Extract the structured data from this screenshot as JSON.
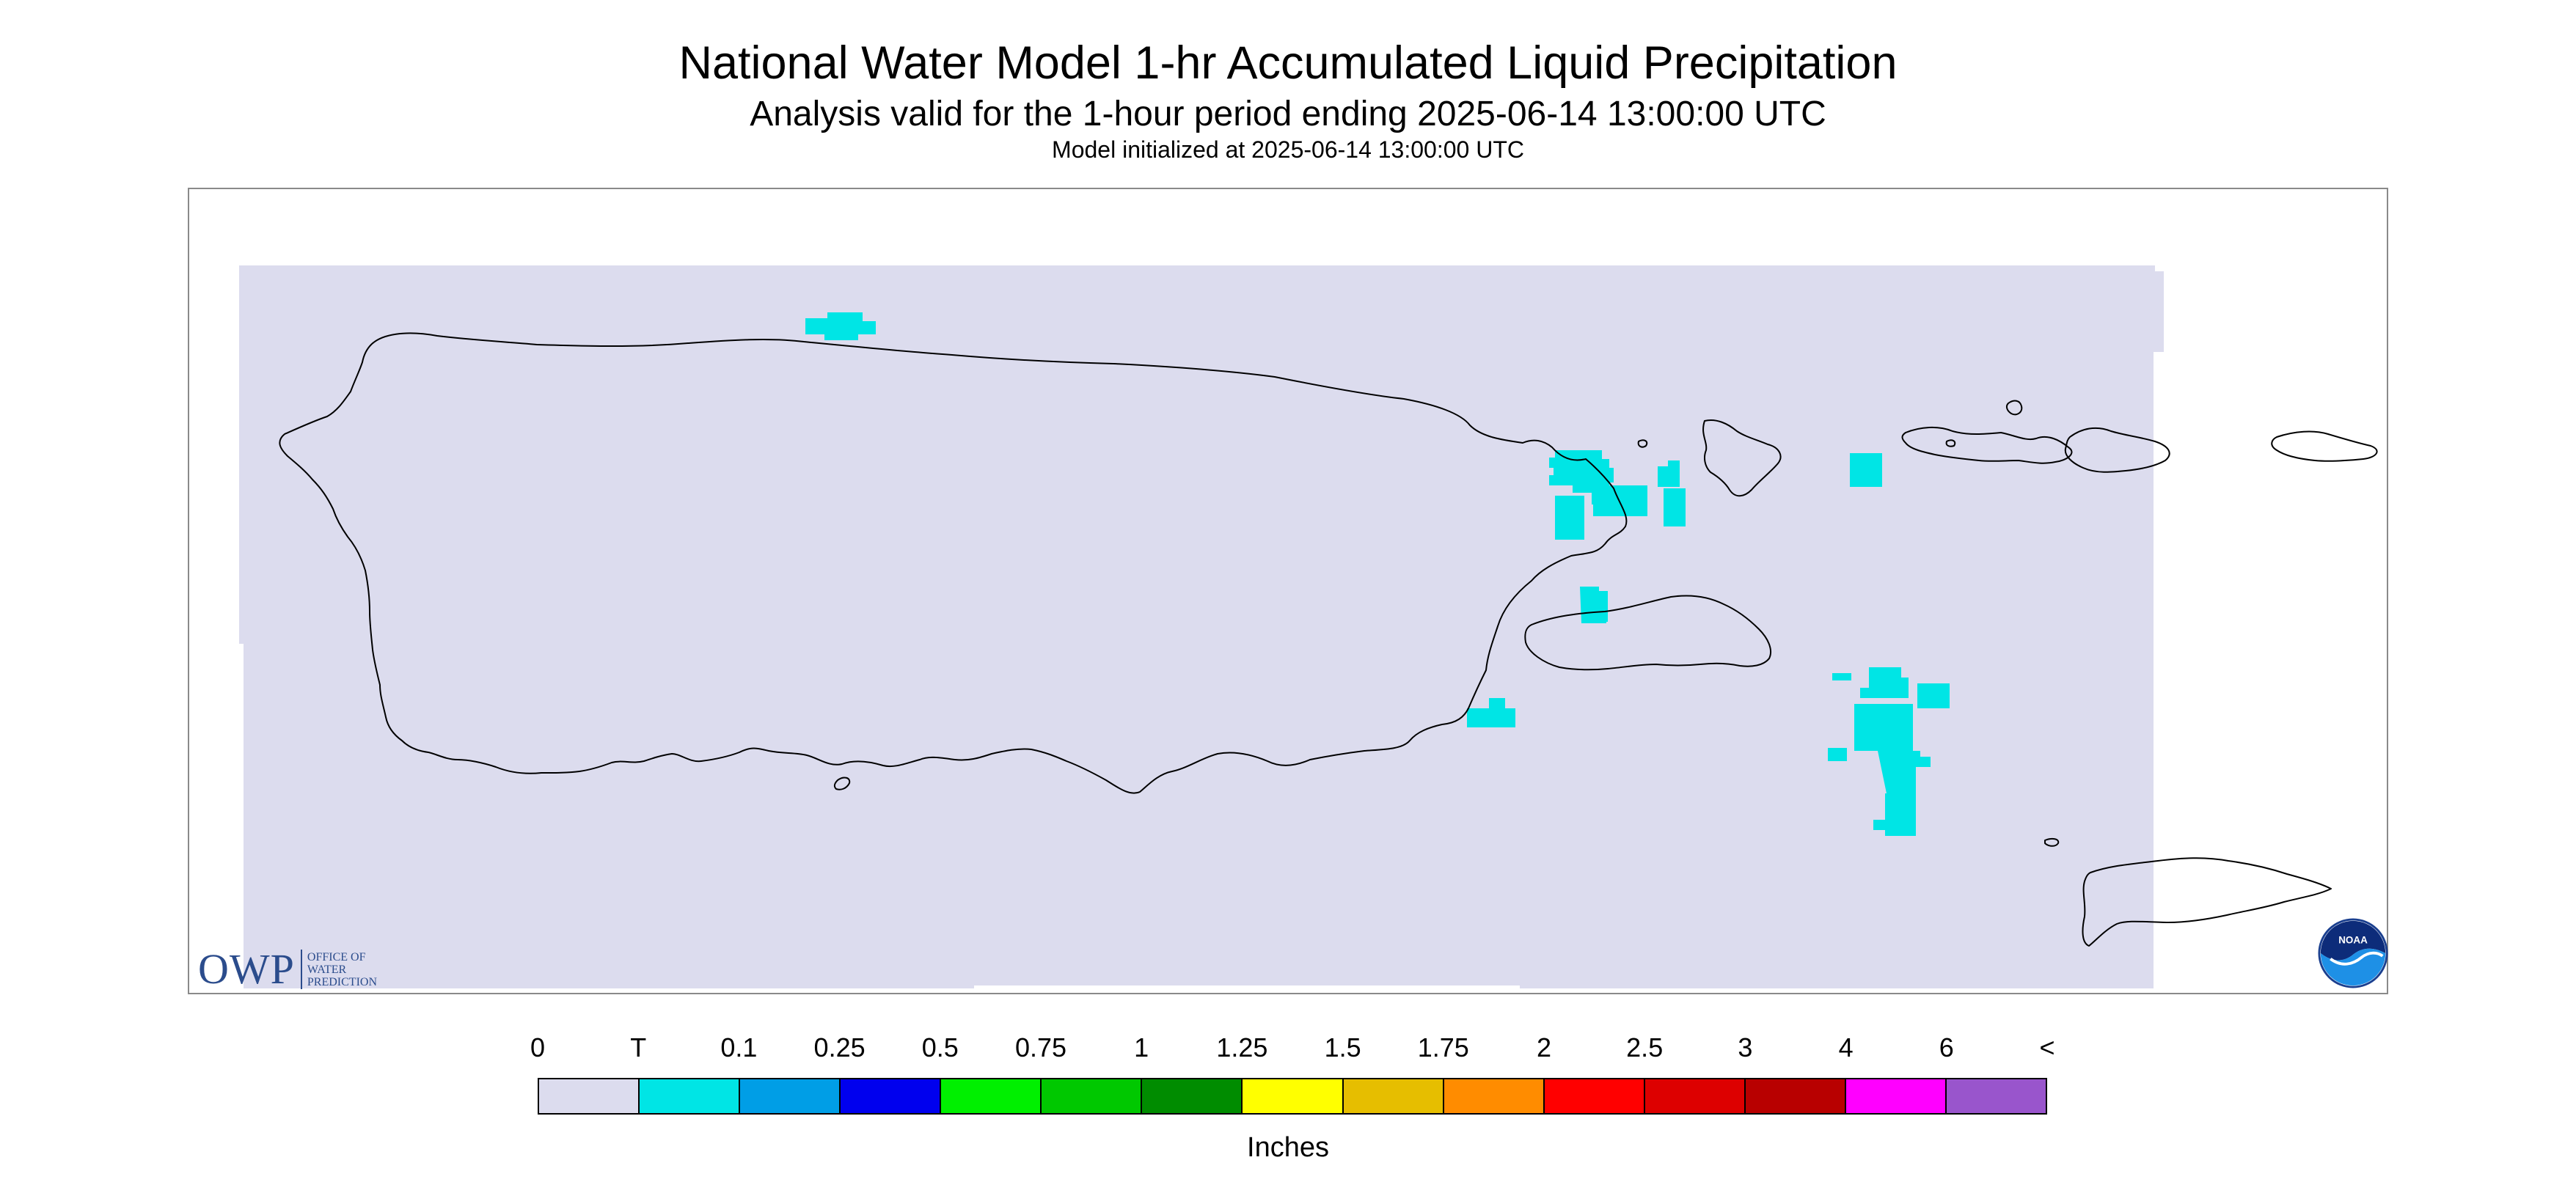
{
  "titles": {
    "main": "National Water Model 1-hr Accumulated Liquid Precipitation",
    "sub": "Analysis valid for the 1-hour period ending 2025-06-14 13:00:00 UTC",
    "init": "Model initialized at 2025-06-14 13:00:00 UTC"
  },
  "colors": {
    "background_field": "#dcdcee",
    "coast_line": "#000000",
    "precip_trace": "#00e5e5"
  },
  "logos": {
    "owp_mark": "OWP",
    "owp_lines": [
      "OFFICE OF",
      "WATER",
      "PREDICTION"
    ],
    "noaa_text": "NOAA"
  },
  "legend": {
    "units": "Inches",
    "ticks": [
      "0",
      "T",
      "0.1",
      "0.25",
      "0.5",
      "0.75",
      "1",
      "1.25",
      "1.5",
      "1.75",
      "2",
      "2.5",
      "3",
      "4",
      "6",
      "<"
    ],
    "colors": [
      "#dcdcee",
      "#00e5e5",
      "#009ee6",
      "#0000ee",
      "#00f000",
      "#00c800",
      "#008c00",
      "#ffff00",
      "#e6be00",
      "#ff8c00",
      "#ff0000",
      "#dd0000",
      "#b80000",
      "#ff00ff",
      "#9955cc"
    ]
  },
  "icons": [
    "noaa-logo",
    "owp-logo"
  ]
}
